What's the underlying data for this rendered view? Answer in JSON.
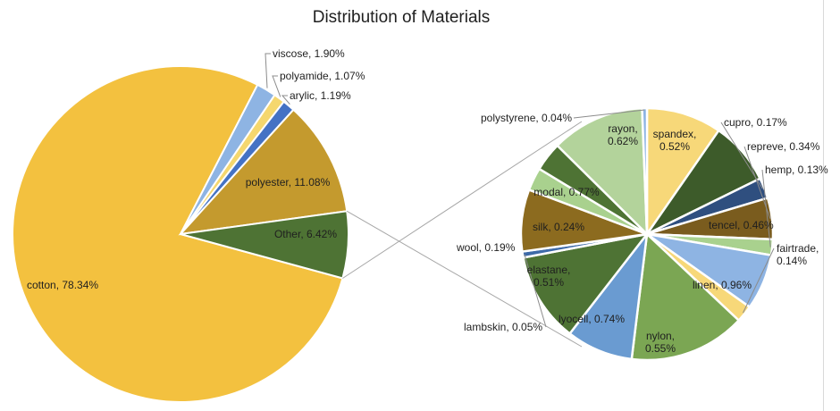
{
  "chart_data": {
    "type": "pie",
    "subtype": "pie-of-pie",
    "title": "Distribution of Materials",
    "main": [
      {
        "label": "cotton",
        "value": 78.34,
        "display": "78.34%",
        "color": "#F3C13F"
      },
      {
        "label": "viscose",
        "value": 1.9,
        "display": "1.90%",
        "color": "#8EB4E3"
      },
      {
        "label": "polyamide",
        "value": 1.07,
        "display": "1.07%",
        "color": "#F5D76E"
      },
      {
        "label": "arylic",
        "value": 1.19,
        "display": "1.19%",
        "color": "#4472C4"
      },
      {
        "label": "polyester",
        "value": 11.08,
        "display": "11.08%",
        "color": "#C49A2E"
      },
      {
        "label": "Other",
        "value": 6.42,
        "display": "6.42%",
        "color": "#4E7334"
      }
    ],
    "other_breakdown": [
      {
        "label": "rayon",
        "value": 0.62,
        "display": "0.62%",
        "color": "#F7D879"
      },
      {
        "label": "spandex",
        "value": 0.52,
        "display": "0.52%",
        "color": "#3D5B2A"
      },
      {
        "label": "cupro",
        "value": 0.17,
        "display": "0.17%",
        "color": "#2F4F7F"
      },
      {
        "label": "repreve",
        "value": 0.34,
        "display": "0.34%",
        "color": "#7A5C1E"
      },
      {
        "label": "hemp",
        "value": 0.13,
        "display": "0.13%",
        "color": "#A9D18E"
      },
      {
        "label": "tencel",
        "value": 0.46,
        "display": "0.46%",
        "color": "#8EB4E3"
      },
      {
        "label": "fairtrade",
        "value": 0.14,
        "display": "0.14%",
        "color": "#F7D879"
      },
      {
        "label": "linen",
        "value": 0.96,
        "display": "0.96%",
        "color": "#7BA653"
      },
      {
        "label": "nylon",
        "value": 0.55,
        "display": "0.55%",
        "color": "#6A9BD1"
      },
      {
        "label": "lyocell",
        "value": 0.74,
        "display": "0.74%",
        "color": "#4E7334"
      },
      {
        "label": "lambskin",
        "value": 0.05,
        "display": "0.05%",
        "color": "#3E6AA8"
      },
      {
        "label": "elastane",
        "value": 0.51,
        "display": "0.51%",
        "color": "#8C6B1F"
      },
      {
        "label": "wool",
        "value": 0.19,
        "display": "0.19%",
        "color": "#A9D18E"
      },
      {
        "label": "silk",
        "value": 0.24,
        "display": "0.24%",
        "color": "#4E7334"
      },
      {
        "label": "modal",
        "value": 0.77,
        "display": "0.77%",
        "color": "#B3D39B"
      },
      {
        "label": "polystyrene",
        "value": 0.04,
        "display": "0.04%",
        "color": "#8EB4E3"
      }
    ]
  }
}
